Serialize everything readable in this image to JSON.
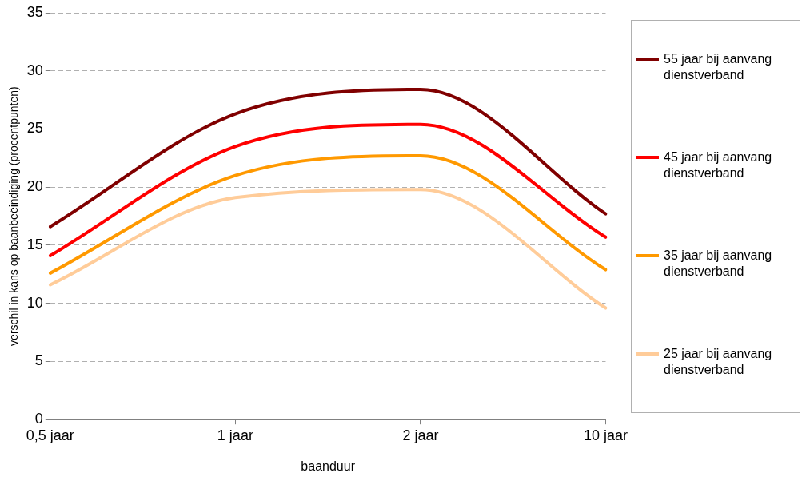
{
  "chart_data": {
    "type": "line",
    "xlabel": "baanduur",
    "ylabel": "verschil in kans op baanbeëindiging (procentpunten)",
    "categories": [
      "0,5 jaar",
      "1 jaar",
      "2 jaar",
      "10 jaar"
    ],
    "series": [
      {
        "name": "55 jaar bij aanvang dienstverband",
        "color": "#800000",
        "values": [
          16.6,
          26.3,
          28.4,
          17.7
        ]
      },
      {
        "name": "45 jaar bij aanvang dienstverband",
        "color": "#ff0000",
        "values": [
          14.1,
          23.5,
          25.4,
          15.7
        ]
      },
      {
        "name": "35 jaar bij aanvang dienstverband",
        "color": "#ff9900",
        "values": [
          12.6,
          21.0,
          22.7,
          12.9
        ]
      },
      {
        "name": "25 jaar bij aanvang dienstverband",
        "color": "#ffcc99",
        "values": [
          11.6,
          19.1,
          19.8,
          9.6
        ]
      }
    ],
    "ylim": [
      0,
      35
    ],
    "yticks": [
      0,
      5,
      10,
      15,
      20,
      25,
      30,
      35
    ],
    "grid": "y",
    "legend": "right",
    "marker": "none",
    "line_style": "solid"
  }
}
